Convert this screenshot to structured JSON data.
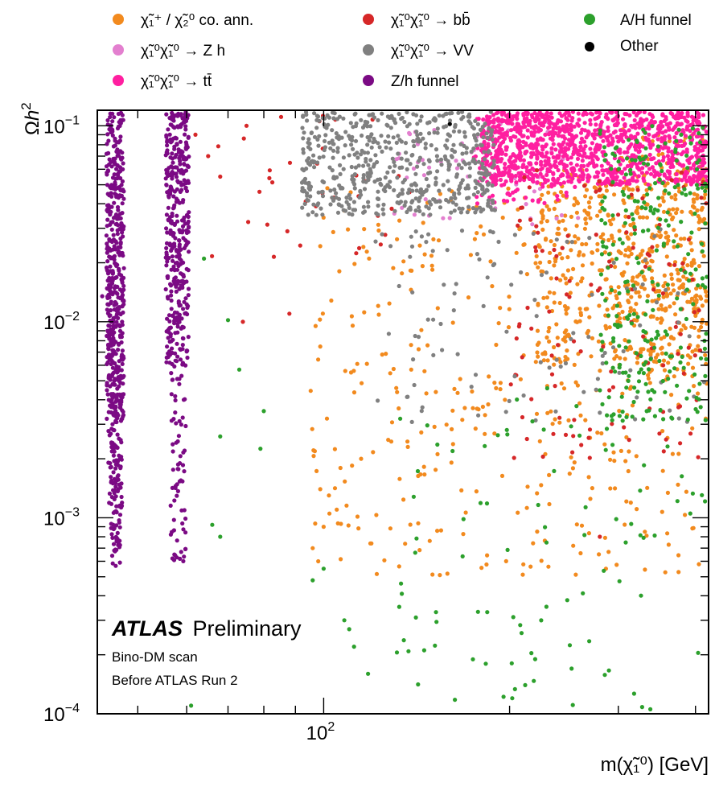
{
  "chart_data": {
    "type": "scatter",
    "xlabel": "m(χ̃₁⁰) [GeV]",
    "ylabel": "Ωh²",
    "xscale": "log",
    "yscale": "log",
    "xlim": [
      43,
      420
    ],
    "ylim": [
      0.0001,
      0.12
    ],
    "x_ticks": [
      {
        "value": 100,
        "base": "10",
        "exp": "2"
      }
    ],
    "y_ticks": [
      {
        "value": 0.1,
        "base": "10",
        "exp": "−1"
      },
      {
        "value": 0.01,
        "base": "10",
        "exp": "−2"
      },
      {
        "value": 0.001,
        "base": "10",
        "exp": "−3"
      },
      {
        "value": 0.0001,
        "base": "10",
        "exp": "−4"
      }
    ],
    "grid": false,
    "legend_position": "top",
    "legend": [
      {
        "label": "χ̃₁⁺ / χ̃₂⁰ co. ann.",
        "color": "#f28a1e"
      },
      {
        "label": "χ̃₁⁰χ̃₁⁰ → Z h",
        "color": "#e37fcf"
      },
      {
        "label": "χ̃₁⁰χ̃₁⁰ → tt̄",
        "color": "#ff1fa0"
      },
      {
        "label": "χ̃₁⁰χ̃₁⁰ → bb̄",
        "color": "#d62728"
      },
      {
        "label": "χ̃₁⁰χ̃₁⁰ →  VV",
        "color": "#808080"
      },
      {
        "label": "Z/h funnel",
        "color": "#7b0a84"
      },
      {
        "label": "A/H funnel",
        "color": "#2ca02c"
      },
      {
        "label": "Other",
        "color": "#000000"
      }
    ],
    "series": [
      {
        "name": "χ̃₁⁺ / χ̃₂⁰ co. ann.",
        "color": "#f28a1e",
        "regions": [
          {
            "x": [
              95,
              420
            ],
            "y": [
              0.0005,
              0.05
            ],
            "n": 380
          },
          {
            "x": [
              220,
              420
            ],
            "y": [
              0.006,
              0.06
            ],
            "n": 420
          },
          {
            "x": [
              300,
              420
            ],
            "y": [
              0.005,
              0.1
            ],
            "n": 160
          }
        ],
        "points": [
          [
            96,
            0.0007
          ],
          [
            98,
            0.0006
          ],
          [
            100,
            0.0009
          ],
          [
            105,
            0.0011
          ],
          [
            102,
            0.0013
          ],
          [
            115,
            0.002
          ]
        ]
      },
      {
        "name": "χ̃₁⁰χ̃₁⁰ → Z h",
        "color": "#e37fcf",
        "regions": [
          {
            "x": [
              130,
              260
            ],
            "y": [
              0.03,
              0.11
            ],
            "n": 60
          }
        ]
      },
      {
        "name": "χ̃₁⁰χ̃₁⁰ → tt̄",
        "color": "#ff1fa0",
        "regions": [
          {
            "x": [
              180,
              420
            ],
            "y": [
              0.05,
              0.12
            ],
            "n": 1100
          },
          {
            "x": [
              175,
              260
            ],
            "y": [
              0.04,
              0.12
            ],
            "n": 150
          }
        ]
      },
      {
        "name": "χ̃₁⁰χ̃₁⁰ → bb̄",
        "color": "#d62728",
        "regions": [
          {
            "x": [
              200,
              420
            ],
            "y": [
              0.002,
              0.06
            ],
            "n": 130
          },
          {
            "x": [
              65,
              140
            ],
            "y": [
              0.02,
              0.12
            ],
            "n": 35
          }
        ],
        "points": [
          [
            62,
            0.09
          ],
          [
            65,
            0.07
          ],
          [
            68,
            0.055
          ],
          [
            75,
            0.1
          ],
          [
            74,
            0.01
          ],
          [
            88,
            0.011
          ],
          [
            280,
            0.0008
          ]
        ]
      },
      {
        "name": "χ̃₁⁰χ̃₁⁰ →  VV",
        "color": "#808080",
        "regions": [
          {
            "x": [
              92,
              190
            ],
            "y": [
              0.035,
              0.12
            ],
            "n": 600
          },
          {
            "x": [
              120,
              420
            ],
            "y": [
              0.003,
              0.03
            ],
            "n": 110
          }
        ]
      },
      {
        "name": "Z/h funnel",
        "color": "#7b0a84",
        "regions": [
          {
            "x": [
              44.5,
              47.5
            ],
            "y": [
              0.003,
              0.12
            ],
            "n": 480
          },
          {
            "x": [
              44.8,
              47.2
            ],
            "y": [
              0.0009,
              0.003
            ],
            "n": 90
          },
          {
            "x": [
              45.2,
              46.8
            ],
            "y": [
              0.00055,
              0.0009
            ],
            "n": 25
          },
          {
            "x": [
              55.5,
              60.5
            ],
            "y": [
              0.006,
              0.12
            ],
            "n": 380
          },
          {
            "x": [
              56.5,
              59.8
            ],
            "y": [
              0.0006,
              0.006
            ],
            "n": 70
          }
        ],
        "points": [
          [
            43.8,
            0.0135
          ]
        ]
      },
      {
        "name": "A/H funnel",
        "color": "#2ca02c",
        "regions": [
          {
            "x": [
              280,
              420
            ],
            "y": [
              0.003,
              0.1
            ],
            "n": 280
          },
          {
            "x": [
              130,
              420
            ],
            "y": [
              0.0001,
              0.005
            ],
            "n": 90
          }
        ],
        "points": [
          [
            61,
            0.00011
          ],
          [
            64,
            0.021
          ],
          [
            66,
            0.00092
          ],
          [
            68,
            0.0026
          ],
          [
            68,
            0.0008
          ],
          [
            73,
            0.0057
          ],
          [
            70,
            0.0102
          ],
          [
            80,
            0.0035
          ],
          [
            79,
            0.00225
          ],
          [
            100,
            0.00055
          ],
          [
            96,
            0.00048
          ],
          [
            108,
            0.0003
          ],
          [
            110,
            0.00027
          ],
          [
            112,
            0.00022
          ],
          [
            118,
            0.00016
          ],
          [
            152,
            0.00033
          ],
          [
            183,
            0.00018
          ],
          [
            184,
            0.00033
          ],
          [
            202,
            0.00012
          ],
          [
            212,
            0.00014
          ],
          [
            220,
            0.00019
          ],
          [
            248,
            0.00038
          ],
          [
            252,
            0.00017
          ]
        ]
      },
      {
        "name": "Other",
        "color": "#000000",
        "points": [
          [
            160,
            0.102
          ]
        ]
      }
    ]
  },
  "annotation": {
    "atlas": "ATLAS",
    "preliminary": "Preliminary",
    "line1": "Bino-DM scan",
    "line2": "Before ATLAS Run 2"
  }
}
